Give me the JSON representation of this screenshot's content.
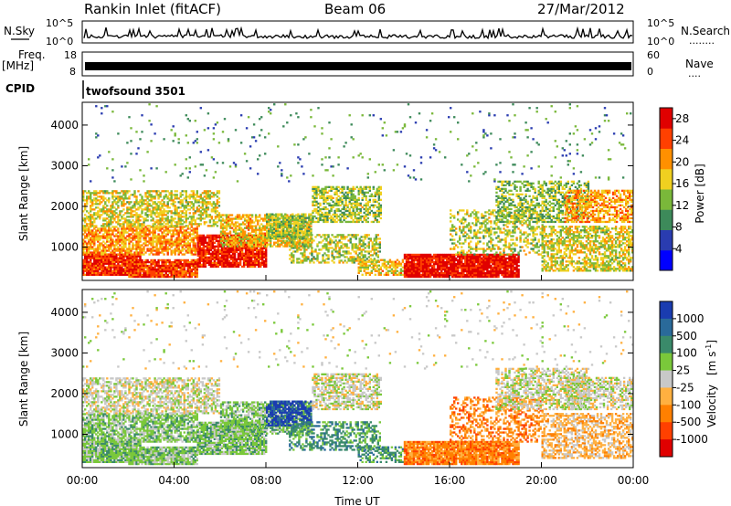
{
  "header": {
    "station": "Rankin Inlet (fitACF)",
    "beam": "Beam 06",
    "date": "27/Mar/2012"
  },
  "noise_panel": {
    "left_label": "N.Sky",
    "left_ticks": [
      "10^5",
      "10^0"
    ],
    "right_ticks": [
      "10^5",
      "10^0"
    ],
    "right_label": "N.Search",
    "right_dots": "........"
  },
  "freq_panel": {
    "left_label_top": "Freq.",
    "left_label_unit": "[MHz]",
    "left_ticks": [
      "18",
      "8"
    ],
    "right_ticks": [
      "60",
      "0"
    ],
    "right_label": "Nave",
    "right_dots": "...."
  },
  "cpid_panel": {
    "label": "CPID",
    "value": "twofsound 3501"
  },
  "chart_data": [
    {
      "type": "heatmap",
      "title": "",
      "parameter": "Power",
      "xlabel": "",
      "ylabel": "Slant Range [km]",
      "ylim": [
        180,
        4560
      ],
      "y_ticks": [
        1000,
        2000,
        3000,
        4000
      ],
      "y_tick_labels": [
        "1000",
        "2000",
        "3000",
        "4000"
      ],
      "colorbar": {
        "label": "Power [dB]",
        "ticks": [
          4,
          8,
          12,
          16,
          20,
          24,
          28
        ],
        "tick_labels": [
          "4",
          "8",
          "12",
          "16",
          "20",
          "24",
          "28"
        ],
        "range": [
          0,
          30
        ],
        "colors": [
          "#0000ff",
          "#2a3cb0",
          "#3d8a5a",
          "#7ab83a",
          "#f0d020",
          "#ff9000",
          "#ff4000",
          "#e00000"
        ]
      }
    },
    {
      "type": "heatmap",
      "title": "",
      "parameter": "Velocity",
      "xlabel": "Time UT",
      "ylabel": "Slant Range [km]",
      "ylim": [
        180,
        4560
      ],
      "y_ticks": [
        1000,
        2000,
        3000,
        4000
      ],
      "y_tick_labels": [
        "1000",
        "2000",
        "3000",
        "4000"
      ],
      "x_ticks": [
        "00:00",
        "04:00",
        "08:00",
        "12:00",
        "16:00",
        "20:00",
        "00:00"
      ],
      "colorbar": {
        "label_main": "Velocity",
        "label_unit": "[m s",
        "label_exp": "-1",
        "label_close": "]",
        "ticks": [
          1000,
          500,
          100,
          25,
          -25,
          -100,
          -500,
          -1000
        ],
        "tick_labels": [
          "1000",
          "500",
          "100",
          "25",
          "-25",
          "-100",
          "-500",
          "-1000"
        ],
        "colors": [
          "#1a3cb0",
          "#2a6a9a",
          "#3a8a6a",
          "#7ac83a",
          "#c8c8c8",
          "#ffb040",
          "#ff8000",
          "#ff4000",
          "#e00000"
        ]
      }
    }
  ]
}
